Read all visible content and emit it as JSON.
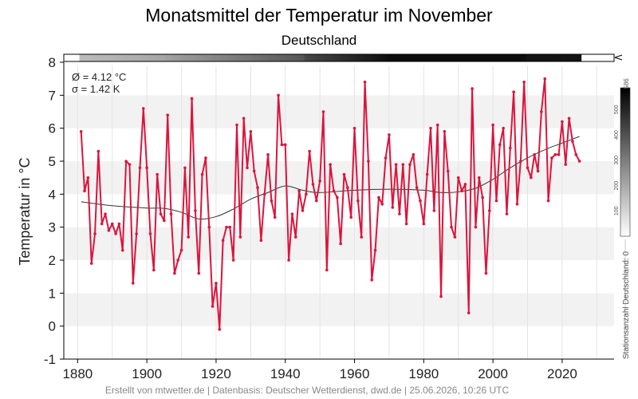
{
  "title": "Monatsmittel der Temperatur im November",
  "subtitle": "Deutschland",
  "footer": "Erstellt von mtwetter.de | Datenbasis: Deutscher Wetterdienst, dwd.de | 25.06.2026, 10:26 UTC",
  "stats": {
    "mean": "Ø = 4.12 °C",
    "sigma": "σ = 1.42 K"
  },
  "colors": {
    "series": "#dc143c",
    "trend": "#333333",
    "band": "#f2f2f2"
  },
  "chart_data": {
    "type": "line",
    "ylabel": "Temperatur in °C",
    "xlabel": "",
    "xlim": [
      1876,
      2035
    ],
    "ylim": [
      -1,
      8
    ],
    "xticks": [
      1880,
      1900,
      1920,
      1940,
      1960,
      1980,
      2000,
      2020
    ],
    "yticks": [
      -1,
      0,
      1,
      2,
      3,
      4,
      5,
      6,
      7,
      8
    ],
    "grid": true,
    "series": [
      {
        "style": "line-with-markers",
        "x": [
          1881,
          1882,
          1883,
          1884,
          1885,
          1886,
          1887,
          1888,
          1889,
          1890,
          1891,
          1892,
          1893,
          1894,
          1895,
          1896,
          1897,
          1898,
          1899,
          1900,
          1901,
          1902,
          1903,
          1904,
          1905,
          1906,
          1907,
          1908,
          1909,
          1910,
          1911,
          1912,
          1913,
          1914,
          1915,
          1916,
          1917,
          1918,
          1919,
          1920,
          1921,
          1922,
          1923,
          1924,
          1925,
          1926,
          1927,
          1928,
          1929,
          1930,
          1931,
          1932,
          1933,
          1934,
          1935,
          1936,
          1937,
          1938,
          1939,
          1940,
          1941,
          1942,
          1943,
          1944,
          1945,
          1946,
          1947,
          1948,
          1949,
          1950,
          1951,
          1952,
          1953,
          1954,
          1955,
          1956,
          1957,
          1958,
          1959,
          1960,
          1961,
          1962,
          1963,
          1964,
          1965,
          1966,
          1967,
          1968,
          1969,
          1970,
          1971,
          1972,
          1973,
          1974,
          1975,
          1976,
          1977,
          1978,
          1979,
          1980,
          1981,
          1982,
          1983,
          1984,
          1985,
          1986,
          1987,
          1988,
          1989,
          1990,
          1991,
          1992,
          1993,
          1994,
          1995,
          1996,
          1997,
          1998,
          1999,
          2000,
          2001,
          2002,
          2003,
          2004,
          2005,
          2006,
          2007,
          2008,
          2009,
          2010,
          2011,
          2012,
          2013,
          2014,
          2015,
          2016,
          2017,
          2018,
          2019,
          2020,
          2021,
          2022,
          2023,
          2024,
          2025
        ],
        "y": [
          5.9,
          4.1,
          4.5,
          1.9,
          2.8,
          5.3,
          3.1,
          3.4,
          2.9,
          3.1,
          2.8,
          3.1,
          2.3,
          5.0,
          4.9,
          1.3,
          2.8,
          4.8,
          6.6,
          4.8,
          2.8,
          1.7,
          4.6,
          3.4,
          3.2,
          6.4,
          3.4,
          1.6,
          2.0,
          2.3,
          4.8,
          2.7,
          6.9,
          3.5,
          1.6,
          4.6,
          5.1,
          3.0,
          0.6,
          1.3,
          -0.1,
          2.6,
          3.0,
          3.0,
          2.0,
          6.1,
          2.7,
          6.3,
          4.8,
          5.9,
          4.7,
          4.2,
          2.6,
          4.0,
          5.2,
          3.8,
          3.3,
          7.0,
          5.5,
          5.5,
          2.0,
          3.4,
          2.7,
          4.1,
          3.5,
          4.0,
          5.3,
          4.3,
          3.8,
          4.4,
          6.5,
          1.7,
          4.9,
          4.1,
          3.9,
          2.5,
          4.6,
          4.2,
          3.3,
          6.0,
          3.8,
          2.7,
          7.4,
          5.0,
          1.4,
          2.3,
          3.9,
          3.7,
          5.1,
          5.8,
          3.6,
          4.9,
          3.4,
          4.9,
          3.1,
          4.9,
          5.2,
          4.2,
          3.8,
          3.1,
          4.6,
          6.0,
          3.5,
          6.1,
          0.9,
          5.9,
          4.7,
          3.0,
          2.7,
          4.5,
          4.1,
          4.3,
          0.4,
          7.2,
          3.0,
          4.5,
          3.9,
          1.6,
          3.5,
          6.1,
          3.8,
          5.5,
          6.0,
          3.4,
          5.4,
          7.1,
          3.7,
          5.0,
          7.4,
          4.8,
          4.5,
          5.2,
          4.7,
          6.5,
          7.5,
          3.8,
          5.1,
          5.2,
          5.2,
          6.2,
          4.9,
          6.3,
          5.6,
          5.2,
          5.0
        ]
      },
      {
        "style": "smoothed-trend",
        "x": [
          1881,
          1890,
          1900,
          1905,
          1910,
          1915,
          1920,
          1925,
          1930,
          1935,
          1940,
          1945,
          1950,
          1960,
          1970,
          1980,
          1985,
          1990,
          1995,
          2000,
          2005,
          2010,
          2015,
          2020,
          2025
        ],
        "y": [
          3.77,
          3.65,
          3.58,
          3.57,
          3.45,
          3.25,
          3.32,
          3.55,
          3.85,
          4.05,
          4.25,
          4.12,
          4.05,
          4.12,
          4.15,
          4.12,
          4.05,
          4.07,
          4.18,
          4.45,
          4.8,
          5.1,
          5.35,
          5.55,
          5.75
        ]
      }
    ],
    "station_strip": {
      "label": "Stationsanzahl Deutschland: 0",
      "label_top": "586",
      "ticks": [
        "100",
        "200",
        "300",
        "400",
        "500"
      ],
      "start_year": 1881
    }
  }
}
